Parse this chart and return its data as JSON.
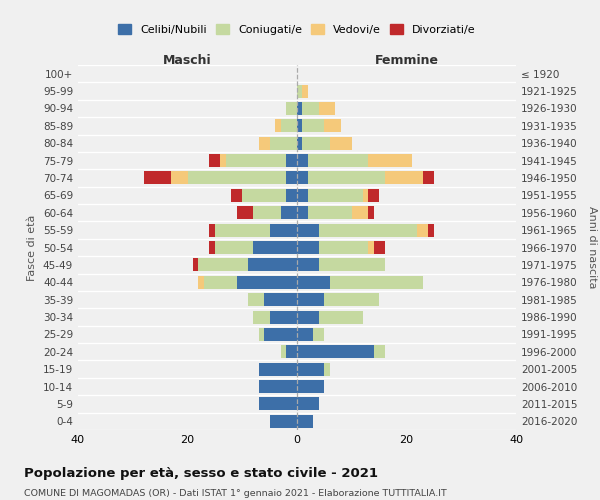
{
  "age_groups": [
    "0-4",
    "5-9",
    "10-14",
    "15-19",
    "20-24",
    "25-29",
    "30-34",
    "35-39",
    "40-44",
    "45-49",
    "50-54",
    "55-59",
    "60-64",
    "65-69",
    "70-74",
    "75-79",
    "80-84",
    "85-89",
    "90-94",
    "95-99",
    "100+"
  ],
  "birth_years": [
    "2016-2020",
    "2011-2015",
    "2006-2010",
    "2001-2005",
    "1996-2000",
    "1991-1995",
    "1986-1990",
    "1981-1985",
    "1976-1980",
    "1971-1975",
    "1966-1970",
    "1961-1965",
    "1956-1960",
    "1951-1955",
    "1946-1950",
    "1941-1945",
    "1936-1940",
    "1931-1935",
    "1926-1930",
    "1921-1925",
    "≤ 1920"
  ],
  "colors": {
    "celibe": "#3d6fa8",
    "coniugato": "#c5d9a0",
    "vedovo": "#f5c97a",
    "divorziato": "#c0292b"
  },
  "maschi": {
    "celibe": [
      5,
      7,
      7,
      7,
      2,
      6,
      5,
      6,
      11,
      9,
      8,
      5,
      3,
      2,
      2,
      2,
      0,
      0,
      0,
      0,
      0
    ],
    "coniugato": [
      0,
      0,
      0,
      0,
      1,
      1,
      3,
      3,
      6,
      9,
      7,
      10,
      5,
      8,
      18,
      11,
      5,
      3,
      2,
      0,
      0
    ],
    "vedovo": [
      0,
      0,
      0,
      0,
      0,
      0,
      0,
      0,
      1,
      0,
      0,
      0,
      0,
      0,
      3,
      1,
      2,
      1,
      0,
      0,
      0
    ],
    "divorziato": [
      0,
      0,
      0,
      0,
      0,
      0,
      0,
      0,
      0,
      1,
      1,
      1,
      3,
      2,
      5,
      2,
      0,
      0,
      0,
      0,
      0
    ]
  },
  "femmine": {
    "celibe": [
      3,
      4,
      5,
      5,
      14,
      3,
      4,
      5,
      6,
      4,
      4,
      4,
      2,
      2,
      2,
      2,
      1,
      1,
      1,
      0,
      0
    ],
    "coniugato": [
      0,
      0,
      0,
      1,
      2,
      2,
      8,
      10,
      17,
      12,
      9,
      18,
      8,
      10,
      14,
      11,
      5,
      4,
      3,
      1,
      0
    ],
    "vedovo": [
      0,
      0,
      0,
      0,
      0,
      0,
      0,
      0,
      0,
      0,
      1,
      2,
      3,
      1,
      7,
      8,
      4,
      3,
      3,
      1,
      0
    ],
    "divorziato": [
      0,
      0,
      0,
      0,
      0,
      0,
      0,
      0,
      0,
      0,
      2,
      1,
      1,
      2,
      2,
      0,
      0,
      0,
      0,
      0,
      0
    ]
  },
  "title": "Popolazione per età, sesso e stato civile - 2021",
  "subtitle": "COMUNE DI MAGOMADAS (OR) - Dati ISTAT 1° gennaio 2021 - Elaborazione TUTTITALIA.IT",
  "xlabel_maschi": "Maschi",
  "xlabel_femmine": "Femmine",
  "ylabel_left": "Fasce di età",
  "ylabel_right": "Anni di nascita",
  "xlim": 40,
  "bg_color": "#f0f0f0",
  "legend_labels": [
    "Celibi/Nubili",
    "Coniugati/e",
    "Vedovi/e",
    "Divorziati/e"
  ]
}
